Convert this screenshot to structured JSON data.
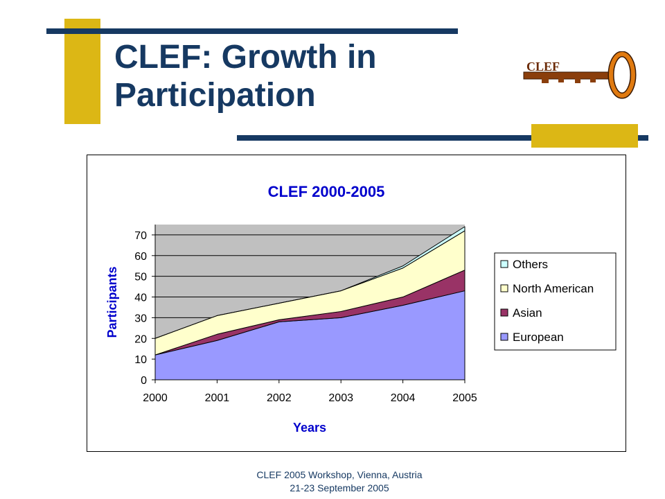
{
  "slide": {
    "title": "CLEF: Growth in Participation",
    "footer_line1": "CLEF 2005 Workshop, Vienna, Austria",
    "footer_line2": "21-23 September 2005",
    "logo_text": "CLEF"
  },
  "colors": {
    "title": "#163962",
    "accent_yellow": "#dcb715",
    "rule_navy": "#163962",
    "chart_title": "#0000cc",
    "plot_background": "#c0c0c0"
  },
  "chart_data": {
    "type": "area",
    "stacked": true,
    "title": "CLEF 2000-2005",
    "xlabel": "Years",
    "ylabel": "Participants",
    "x": [
      2000,
      2001,
      2002,
      2003,
      2004,
      2005
    ],
    "ylim": [
      0,
      75
    ],
    "yticks": [
      0,
      10,
      20,
      30,
      40,
      50,
      60,
      70
    ],
    "gridlines": "horizontal",
    "legend_position": "right",
    "series": [
      {
        "name": "European",
        "color": "#9999ff",
        "values": [
          12,
          19,
          28,
          30,
          36,
          43
        ]
      },
      {
        "name": "Asian",
        "color": "#993366",
        "values": [
          0,
          3,
          1,
          3,
          4,
          10
        ]
      },
      {
        "name": "North American",
        "color": "#ffffcc",
        "values": [
          8,
          9,
          8,
          10,
          14,
          19
        ]
      },
      {
        "name": "Others",
        "color": "#ccffff",
        "values": [
          0,
          0,
          0,
          0,
          1,
          2
        ]
      }
    ]
  }
}
